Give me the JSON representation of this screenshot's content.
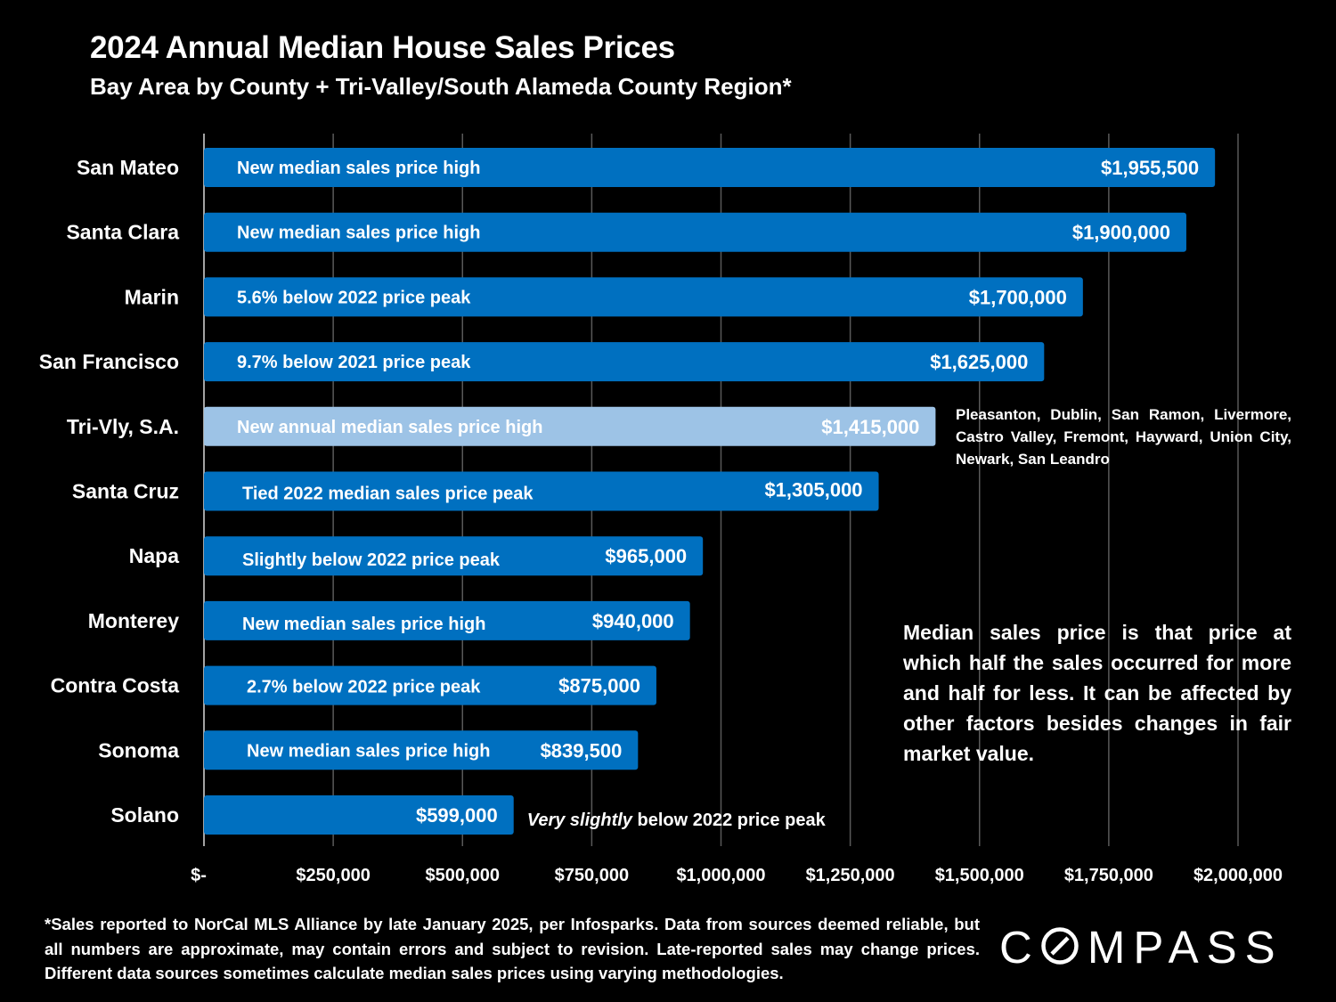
{
  "header": {
    "title": "2024 Annual Median House Sales Prices",
    "subtitle": "Bay Area by County + Tri-Valley/South Alameda County Region*"
  },
  "colors": {
    "background": "#000000",
    "bar": "#0070C0",
    "bar_highlight": "#9DC3E6",
    "gridline": "#595959",
    "text": "#FFFFFF",
    "highlight_text": "#000000"
  },
  "chart_data": {
    "type": "bar",
    "orientation": "horizontal",
    "title": "2024 Annual Median House Sales Prices",
    "subtitle": "Bay Area by County + Tri-Valley/South Alameda County Region*",
    "categories": [
      "San Mateo",
      "Santa Clara",
      "Marin",
      "San Francisco",
      "Tri-Vly, S.A.",
      "Santa Cruz",
      "Napa",
      "Monterey",
      "Contra Costa",
      "Sonoma",
      "Solano"
    ],
    "values": [
      1955500,
      1900000,
      1700000,
      1625000,
      1415000,
      1305000,
      965000,
      940000,
      875000,
      839500,
      599000
    ],
    "value_labels": [
      "$1,955,500",
      "$1,900,000",
      "$1,700,000",
      "$1,625,000",
      "$1,415,000",
      "$1,305,000",
      "$965,000",
      "$940,000",
      "$875,000",
      "$839,500",
      "$599,000"
    ],
    "annotations": [
      "New median sales price high",
      "New median sales price high",
      "5.6% below 2022 price peak",
      "9.7% below 2021 price peak",
      "New annual median sales price high",
      "Tied 2022 median sales price peak",
      "Slightly below 2022 price peak",
      "New median sales price high",
      "2.7% below 2022 price peak",
      "New median sales price high",
      ""
    ],
    "solano_annotation": {
      "italic": "Very slightly",
      "rest": " below 2022 price peak"
    },
    "highlight_category": "Tri-Vly, S.A.",
    "xlim": [
      0,
      2000000
    ],
    "x_ticks": [
      0,
      250000,
      500000,
      750000,
      1000000,
      1250000,
      1500000,
      1750000,
      2000000
    ],
    "x_tick_labels": [
      "$-",
      "$250,000",
      "$500,000",
      "$750,000",
      "$1,000,000",
      "$1,250,000",
      "$1,500,000",
      "$1,750,000",
      "$2,000,000"
    ],
    "grid": "vertical",
    "xlabel": "",
    "ylabel": ""
  },
  "trivly_note": "Pleasanton, Dublin, San Ramon, Livermore, Castro Valley, Fremont, Hayward, Union City, Newark, San Leandro",
  "definition": "Median sales price is that price at which half the sales occurred for more and half for less. It can be affected by other factors besides changes in fair market value.",
  "footnote": "*Sales reported to NorCal MLS Alliance by late January 2025, per Infosparks. Data from sources deemed reliable, but all numbers are approximate, may contain errors and subject to revision. Late-reported sales may change prices. Different data sources sometimes calculate median sales prices using varying methodologies.",
  "logo": "COMPASS"
}
